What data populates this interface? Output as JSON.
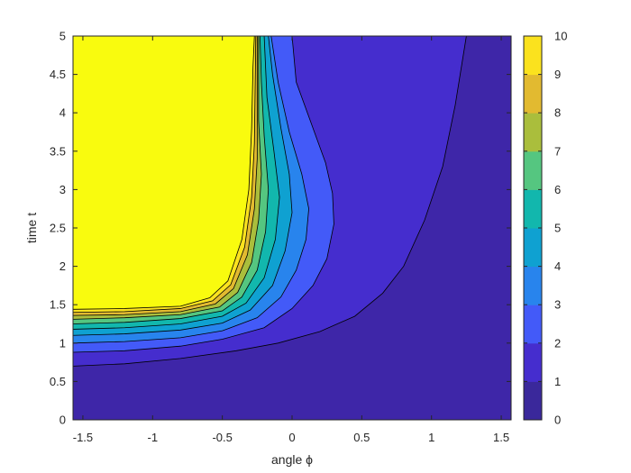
{
  "chart_data": {
    "type": "contourf",
    "xlabel": "angle ϕ",
    "ylabel": "time t",
    "xlim": [
      -1.5708,
      1.5708
    ],
    "ylim": [
      0,
      5
    ],
    "xticks": [
      -1.5,
      -1,
      -0.5,
      0,
      0.5,
      1,
      1.5
    ],
    "xtick_labels": [
      "-1.5",
      "-1",
      "-0.5",
      "0",
      "0.5",
      "1",
      "1.5"
    ],
    "yticks": [
      0,
      0.5,
      1,
      1.5,
      2,
      2.5,
      3,
      3.5,
      4,
      4.5,
      5
    ],
    "ytick_labels": [
      "0",
      "0.5",
      "1",
      "1.5",
      "2",
      "2.5",
      "3",
      "3.5",
      "4",
      "4.5",
      "5"
    ],
    "colorbar": {
      "range": [
        0,
        10
      ],
      "ticks": [
        0,
        1,
        2,
        3,
        4,
        5,
        6,
        7,
        8,
        9,
        10
      ],
      "tick_labels": [
        "0",
        "1",
        "2",
        "3",
        "4",
        "5",
        "6",
        "7",
        "8",
        "9",
        "10"
      ],
      "colormap": "parula"
    },
    "contour_levels": [
      1,
      2,
      3,
      4,
      5,
      6,
      7,
      8,
      9,
      10
    ],
    "contours": [
      {
        "level": 1,
        "points": [
          [
            -1.5708,
            0.7
          ],
          [
            -1.2,
            0.73
          ],
          [
            -0.8,
            0.8
          ],
          [
            -0.4,
            0.9
          ],
          [
            -0.1,
            1.0
          ],
          [
            0.2,
            1.15
          ],
          [
            0.45,
            1.35
          ],
          [
            0.65,
            1.65
          ],
          [
            0.8,
            2.0
          ],
          [
            0.95,
            2.6
          ],
          [
            1.08,
            3.3
          ],
          [
            1.17,
            4.1
          ],
          [
            1.25,
            5.0
          ]
        ]
      },
      {
        "level": 2,
        "points": [
          [
            -1.5708,
            0.88
          ],
          [
            -1.2,
            0.9
          ],
          [
            -0.8,
            0.96
          ],
          [
            -0.5,
            1.05
          ],
          [
            -0.2,
            1.2
          ],
          [
            0.0,
            1.45
          ],
          [
            0.15,
            1.75
          ],
          [
            0.25,
            2.1
          ],
          [
            0.3,
            2.55
          ],
          [
            0.29,
            2.95
          ],
          [
            0.24,
            3.35
          ],
          [
            0.14,
            3.85
          ],
          [
            0.03,
            4.4
          ],
          [
            0.0,
            5.0
          ]
        ]
      },
      {
        "level": 3,
        "points": [
          [
            -1.5708,
            1.0
          ],
          [
            -1.2,
            1.02
          ],
          [
            -0.8,
            1.07
          ],
          [
            -0.5,
            1.16
          ],
          [
            -0.25,
            1.33
          ],
          [
            -0.08,
            1.6
          ],
          [
            0.03,
            1.95
          ],
          [
            0.1,
            2.35
          ],
          [
            0.12,
            2.75
          ],
          [
            0.07,
            3.2
          ],
          [
            -0.02,
            3.75
          ],
          [
            -0.1,
            4.4
          ],
          [
            -0.15,
            5.0
          ]
        ]
      },
      {
        "level": 4,
        "points": [
          [
            -1.5708,
            1.1
          ],
          [
            -1.2,
            1.12
          ],
          [
            -0.8,
            1.17
          ],
          [
            -0.5,
            1.26
          ],
          [
            -0.3,
            1.43
          ],
          [
            -0.14,
            1.75
          ],
          [
            -0.05,
            2.2
          ],
          [
            0.0,
            2.7
          ],
          [
            -0.02,
            3.2
          ],
          [
            -0.08,
            3.8
          ],
          [
            -0.14,
            4.5
          ],
          [
            -0.17,
            5.0
          ]
        ]
      },
      {
        "level": 5,
        "points": [
          [
            -1.5708,
            1.18
          ],
          [
            -1.2,
            1.2
          ],
          [
            -0.8,
            1.25
          ],
          [
            -0.5,
            1.35
          ],
          [
            -0.33,
            1.52
          ],
          [
            -0.2,
            1.85
          ],
          [
            -0.12,
            2.35
          ],
          [
            -0.09,
            2.9
          ],
          [
            -0.13,
            3.5
          ],
          [
            -0.18,
            4.2
          ],
          [
            -0.2,
            5.0
          ]
        ]
      },
      {
        "level": 6,
        "points": [
          [
            -1.5708,
            1.25
          ],
          [
            -1.2,
            1.27
          ],
          [
            -0.8,
            1.32
          ],
          [
            -0.5,
            1.42
          ],
          [
            -0.36,
            1.6
          ],
          [
            -0.25,
            1.95
          ],
          [
            -0.19,
            2.45
          ],
          [
            -0.17,
            3.0
          ],
          [
            -0.2,
            3.7
          ],
          [
            -0.22,
            4.4
          ],
          [
            -0.23,
            5.0
          ]
        ]
      },
      {
        "level": 7,
        "points": [
          [
            -1.5708,
            1.31
          ],
          [
            -1.2,
            1.33
          ],
          [
            -0.8,
            1.37
          ],
          [
            -0.52,
            1.47
          ],
          [
            -0.39,
            1.66
          ],
          [
            -0.29,
            2.05
          ],
          [
            -0.24,
            2.6
          ],
          [
            -0.22,
            3.2
          ],
          [
            -0.24,
            3.9
          ],
          [
            -0.24,
            5.0
          ]
        ]
      },
      {
        "level": 8,
        "points": [
          [
            -1.5708,
            1.36
          ],
          [
            -1.2,
            1.37
          ],
          [
            -0.8,
            1.41
          ],
          [
            -0.55,
            1.51
          ],
          [
            -0.42,
            1.71
          ],
          [
            -0.32,
            2.15
          ],
          [
            -0.27,
            2.75
          ],
          [
            -0.25,
            3.4
          ],
          [
            -0.25,
            5.0
          ]
        ]
      },
      {
        "level": 9,
        "points": [
          [
            -1.5708,
            1.4
          ],
          [
            -1.2,
            1.41
          ],
          [
            -0.8,
            1.45
          ],
          [
            -0.57,
            1.55
          ],
          [
            -0.44,
            1.76
          ],
          [
            -0.34,
            2.25
          ],
          [
            -0.29,
            2.9
          ],
          [
            -0.27,
            3.6
          ],
          [
            -0.26,
            5.0
          ]
        ]
      },
      {
        "level": 10,
        "points": [
          [
            -1.5708,
            1.44
          ],
          [
            -1.2,
            1.45
          ],
          [
            -0.8,
            1.48
          ],
          [
            -0.59,
            1.59
          ],
          [
            -0.46,
            1.81
          ],
          [
            -0.36,
            2.35
          ],
          [
            -0.31,
            3.0
          ],
          [
            -0.29,
            3.8
          ],
          [
            -0.28,
            4.6
          ],
          [
            -0.27,
            5.0
          ]
        ]
      }
    ]
  }
}
